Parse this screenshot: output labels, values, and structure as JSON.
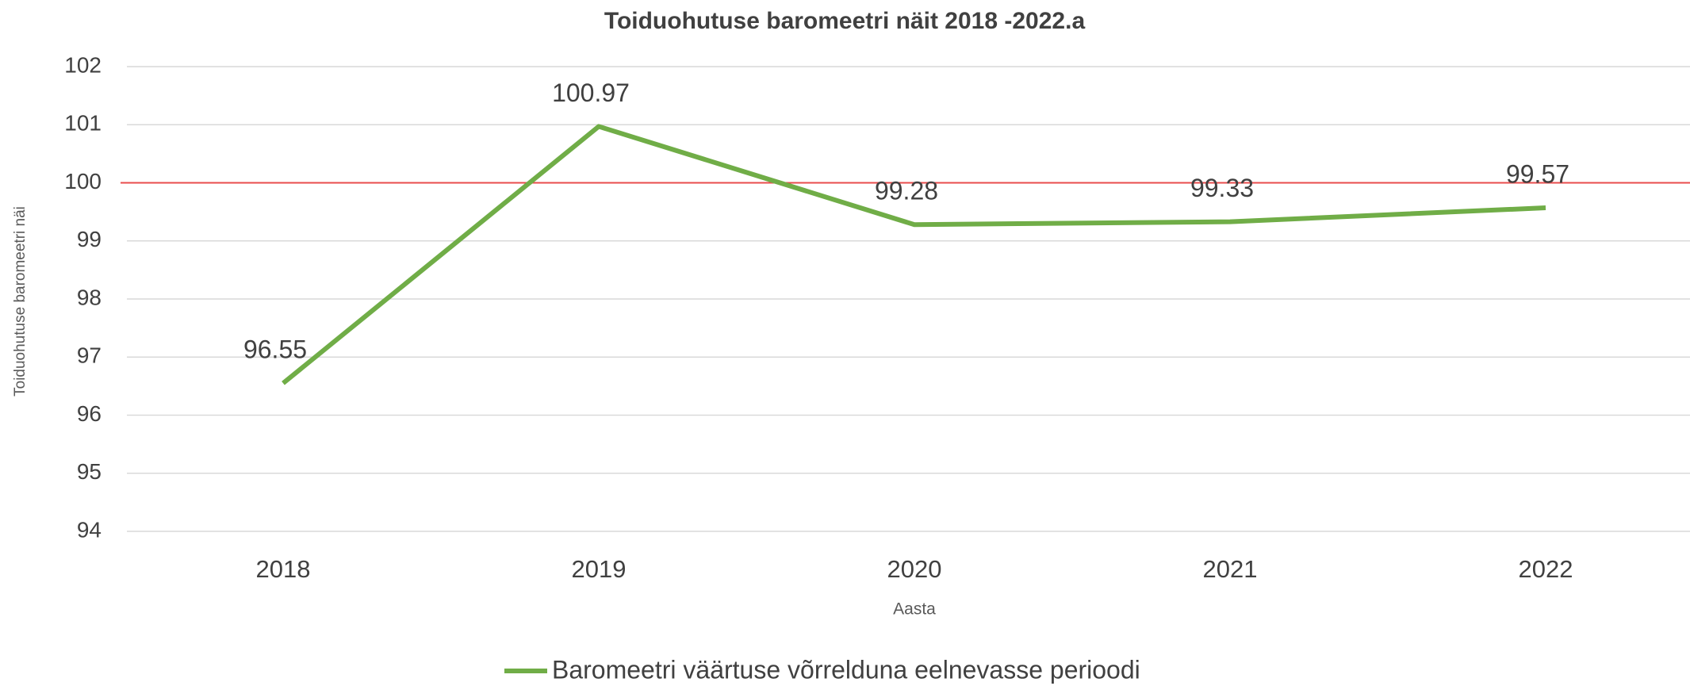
{
  "chart_data": {
    "type": "line",
    "title": "Toiduohutuse  baromeetri näit 2018 -2022.a",
    "x_label": "Aasta",
    "y_label": "Toiduohutuse baromeetri näi",
    "categories": [
      "2018",
      "2019",
      "2020",
      "2021",
      "2022"
    ],
    "series": [
      {
        "name": "Baromeetri väärtuse võrrelduna eelnevasse perioodi",
        "color": "#70ad47",
        "values": [
          96.55,
          100.97,
          99.28,
          99.33,
          99.57
        ]
      }
    ],
    "reference_line": {
      "value": 100,
      "color": "#e84c4c"
    },
    "ylim": [
      94,
      102
    ],
    "yticks": [
      94,
      95,
      96,
      97,
      98,
      99,
      100,
      101,
      102
    ],
    "grid": true,
    "legend": "bottom"
  }
}
